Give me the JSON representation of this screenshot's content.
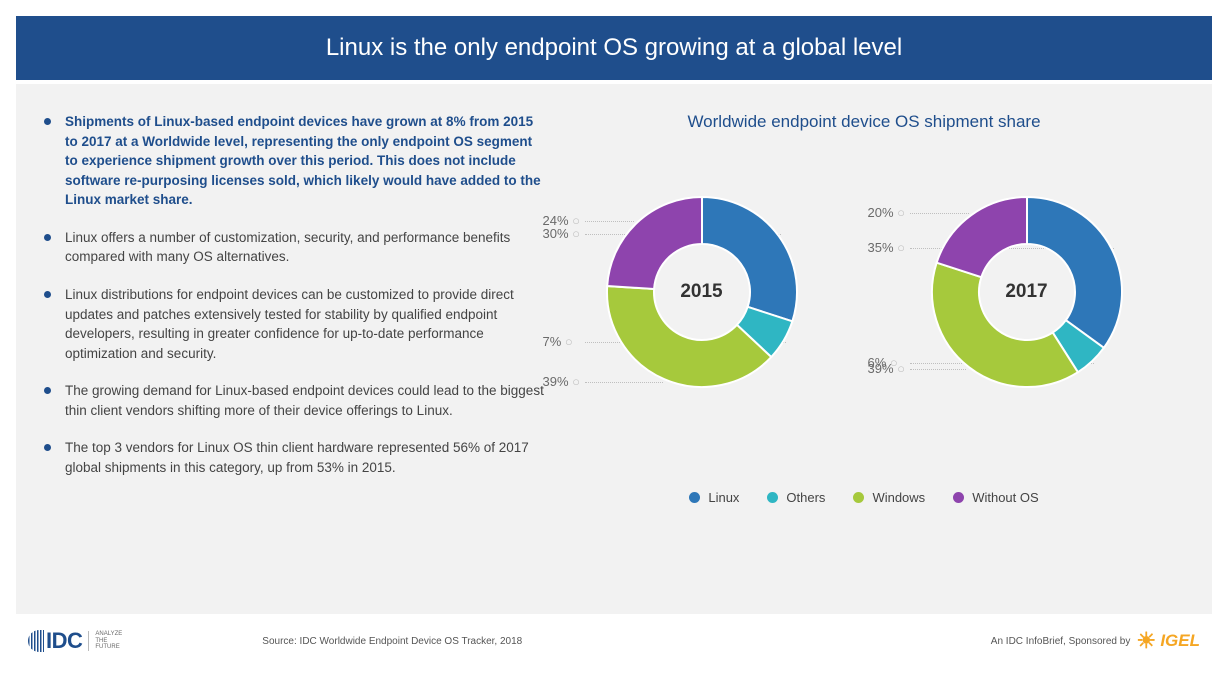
{
  "header": {
    "title": "Linux is the only endpoint OS growing at a global level",
    "bg_color": "#1f4e8c",
    "text_color": "#ffffff"
  },
  "bullets": [
    {
      "bold": true,
      "text": "Shipments of Linux-based endpoint devices have grown at 8% from 2015 to 2017 at a Worldwide level, representing the only endpoint OS segment to experience shipment growth over this period. This does not include software re-purposing licenses sold, which likely would have added to the Linux market share."
    },
    {
      "bold": false,
      "text": "Linux offers a number of customization, security, and performance benefits compared with many OS alternatives."
    },
    {
      "bold": false,
      "text": "Linux distributions for endpoint devices can be customized to provide direct updates and patches extensively tested for stability by qualified endpoint developers, resulting in greater confidence for up-to-date performance optimization and security."
    },
    {
      "bold": false,
      "text": "The growing demand for Linux-based endpoint devices could lead to the biggest thin client vendors shifting more of their device offerings to Linux."
    },
    {
      "bold": false,
      "text": "The top 3 vendors for Linux OS thin client hardware represented 56% of 2017 global shipments in this category, up from 53% in 2015."
    }
  ],
  "chart": {
    "title": "Worldwide endpoint device OS shipment share",
    "type": "donut",
    "background_color": "#f2f2f2",
    "donut_outer_radius": 95,
    "donut_inner_radius": 48,
    "series_order": [
      "Linux",
      "Others",
      "Windows",
      "Without OS"
    ],
    "colors": {
      "Linux": "#2e77b8",
      "Others": "#2fb6c3",
      "Windows": "#a6c93c",
      "Without OS": "#8e44ad"
    },
    "donuts": [
      {
        "center_label": "2015",
        "slices": [
          {
            "name": "Linux",
            "value": 30,
            "label": "30%"
          },
          {
            "name": "Others",
            "value": 7,
            "label": "7%"
          },
          {
            "name": "Windows",
            "value": 39,
            "label": "39%"
          },
          {
            "name": "Without OS",
            "value": 24,
            "label": "24%"
          }
        ]
      },
      {
        "center_label": "2017",
        "slices": [
          {
            "name": "Linux",
            "value": 35,
            "label": "35%"
          },
          {
            "name": "Others",
            "value": 6,
            "label": "6%"
          },
          {
            "name": "Windows",
            "value": 39,
            "label": "39%"
          },
          {
            "name": "Without OS",
            "value": 20,
            "label": "20%"
          }
        ]
      }
    ],
    "legend": [
      {
        "label": "Linux",
        "color": "#2e77b8"
      },
      {
        "label": "Others",
        "color": "#2fb6c3"
      },
      {
        "label": "Windows",
        "color": "#a6c93c"
      },
      {
        "label": "Without OS",
        "color": "#8e44ad"
      }
    ],
    "label_fontsize": 13,
    "label_color": "#6a6a6a",
    "leader_color": "#bfbfbf"
  },
  "footer": {
    "idc_brand": "IDC",
    "idc_tagline_1": "ANALYZE",
    "idc_tagline_2": "THE",
    "idc_tagline_3": "FUTURE",
    "source": "Source: IDC Worldwide Endpoint Device OS Tracker, 2018",
    "sponsor_prefix": "An IDC InfoBrief, Sponsored by",
    "sponsor_name": "IGEL"
  }
}
